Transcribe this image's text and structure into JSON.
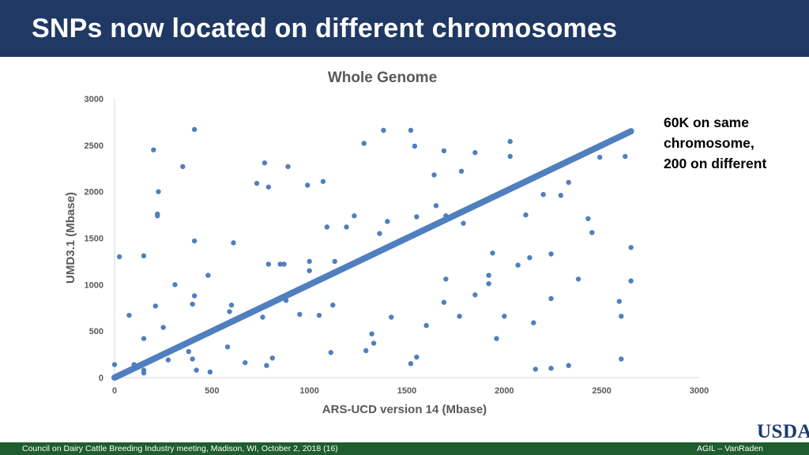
{
  "slide": {
    "title": "SNPs now located on different chromosomes",
    "footer_left": "Council on Dairy Cattle Breeding Industry meeting, Madison, WI, October 2, 2018 (16)",
    "footer_right": "AGIL – VanRaden",
    "logo_text": "USDA",
    "note_lines": [
      "60K on same",
      "chromosome,",
      "200 on different"
    ]
  },
  "colors": {
    "title_bar": "#1f3864",
    "footer_bar": "#1f5c2e",
    "points": "#4f7fbf",
    "logo": "#1a3a6e"
  },
  "chart_data": {
    "type": "scatter",
    "title": "Whole Genome",
    "xlabel": "ARS-UCD version 14 (Mbase)",
    "ylabel": "UMD3.1 (Mbase)",
    "xlim": [
      0,
      3000
    ],
    "ylim": [
      0,
      3000
    ],
    "xticks": [
      0,
      500,
      1000,
      1500,
      2000,
      2500,
      3000
    ],
    "yticks": [
      0,
      500,
      1000,
      1500,
      2000,
      2500,
      3000
    ],
    "grid": false,
    "diagonal": {
      "x": [
        0,
        2650
      ],
      "y": [
        0,
        2650
      ],
      "label": "same-chromosome SNPs (~60K)"
    },
    "points": [
      [
        0,
        140
      ],
      [
        25,
        1300
      ],
      [
        75,
        670
      ],
      [
        100,
        140
      ],
      [
        150,
        1310
      ],
      [
        150,
        420
      ],
      [
        150,
        80
      ],
      [
        150,
        50
      ],
      [
        200,
        2450
      ],
      [
        210,
        770
      ],
      [
        220,
        1760
      ],
      [
        220,
        1740
      ],
      [
        225,
        2000
      ],
      [
        230,
        230
      ],
      [
        250,
        540
      ],
      [
        275,
        190
      ],
      [
        310,
        1000
      ],
      [
        350,
        2270
      ],
      [
        380,
        280
      ],
      [
        400,
        200
      ],
      [
        400,
        790
      ],
      [
        410,
        1470
      ],
      [
        410,
        2670
      ],
      [
        410,
        880
      ],
      [
        420,
        80
      ],
      [
        480,
        1100
      ],
      [
        490,
        60
      ],
      [
        580,
        330
      ],
      [
        590,
        710
      ],
      [
        600,
        780
      ],
      [
        610,
        1450
      ],
      [
        670,
        160
      ],
      [
        730,
        2090
      ],
      [
        760,
        650
      ],
      [
        770,
        2310
      ],
      [
        780,
        130
      ],
      [
        790,
        2050
      ],
      [
        790,
        1220
      ],
      [
        810,
        210
      ],
      [
        850,
        1220
      ],
      [
        870,
        1220
      ],
      [
        880,
        830
      ],
      [
        890,
        2270
      ],
      [
        950,
        680
      ],
      [
        990,
        2070
      ],
      [
        1000,
        1250
      ],
      [
        1000,
        1150
      ],
      [
        1050,
        670
      ],
      [
        1070,
        2110
      ],
      [
        1090,
        1620
      ],
      [
        1110,
        270
      ],
      [
        1120,
        780
      ],
      [
        1130,
        1250
      ],
      [
        1190,
        1620
      ],
      [
        1230,
        1740
      ],
      [
        1280,
        2520
      ],
      [
        1290,
        290
      ],
      [
        1320,
        470
      ],
      [
        1330,
        370
      ],
      [
        1360,
        1550
      ],
      [
        1380,
        2660
      ],
      [
        1400,
        1680
      ],
      [
        1420,
        650
      ],
      [
        1520,
        150
      ],
      [
        1520,
        2660
      ],
      [
        1540,
        2490
      ],
      [
        1550,
        1730
      ],
      [
        1550,
        220
      ],
      [
        1600,
        560
      ],
      [
        1640,
        2180
      ],
      [
        1650,
        1850
      ],
      [
        1690,
        2440
      ],
      [
        1690,
        810
      ],
      [
        1700,
        1060
      ],
      [
        1700,
        1740
      ],
      [
        1770,
        660
      ],
      [
        1780,
        2220
      ],
      [
        1790,
        1660
      ],
      [
        1850,
        2420
      ],
      [
        1850,
        890
      ],
      [
        1920,
        1100
      ],
      [
        1920,
        1010
      ],
      [
        1940,
        1340
      ],
      [
        1960,
        420
      ],
      [
        2000,
        660
      ],
      [
        2030,
        2540
      ],
      [
        2030,
        2380
      ],
      [
        2070,
        1210
      ],
      [
        2110,
        1750
      ],
      [
        2130,
        1290
      ],
      [
        2150,
        590
      ],
      [
        2160,
        90
      ],
      [
        2200,
        1970
      ],
      [
        2240,
        1330
      ],
      [
        2240,
        850
      ],
      [
        2240,
        100
      ],
      [
        2290,
        1960
      ],
      [
        2330,
        2100
      ],
      [
        2330,
        130
      ],
      [
        2380,
        1060
      ],
      [
        2430,
        1710
      ],
      [
        2450,
        1560
      ],
      [
        2490,
        2370
      ],
      [
        2600,
        200
      ],
      [
        2600,
        660
      ],
      [
        2620,
        2380
      ],
      [
        2650,
        1400
      ],
      [
        2650,
        1040
      ],
      [
        2590,
        820
      ]
    ]
  }
}
